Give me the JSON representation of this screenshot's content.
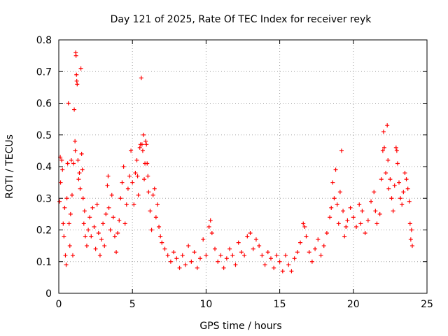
{
  "chart_data": {
    "type": "scatter",
    "title": "Day 121 of 2025, Rate Of TEC Index for receiver reyk",
    "xlabel": "GPS time / hours",
    "ylabel": "ROTI / TECUs",
    "xlim": [
      0,
      25
    ],
    "ylim": [
      0,
      0.8
    ],
    "xticks": [
      0,
      5,
      10,
      15,
      20,
      25
    ],
    "xtick_labels": [
      "0",
      "5",
      "10",
      "15",
      "20",
      "25"
    ],
    "yticks": [
      0,
      0.1,
      0.2,
      0.3,
      0.4,
      0.5,
      0.6,
      0.7,
      0.8
    ],
    "ytick_labels": [
      "0",
      "0.1",
      "0.2",
      "0.3",
      "0.4",
      "0.5",
      "0.6",
      "0.7",
      "0.8"
    ],
    "grid": true,
    "marker": "+",
    "color": "#ff0000",
    "series": [
      {
        "name": "ROTI",
        "points": [
          [
            0.05,
            0.29
          ],
          [
            0.1,
            0.43
          ],
          [
            0.12,
            0.35
          ],
          [
            0.2,
            0.42
          ],
          [
            0.25,
            0.39
          ],
          [
            0.3,
            0.22
          ],
          [
            0.35,
            0.18
          ],
          [
            0.4,
            0.27
          ],
          [
            0.45,
            0.12
          ],
          [
            0.5,
            0.09
          ],
          [
            0.55,
            0.3
          ],
          [
            0.6,
            0.41
          ],
          [
            0.65,
            0.6
          ],
          [
            0.7,
            0.22
          ],
          [
            0.75,
            0.15
          ],
          [
            0.8,
            0.25
          ],
          [
            0.85,
            0.42
          ],
          [
            0.9,
            0.31
          ],
          [
            0.95,
            0.12
          ],
          [
            1.0,
            0.41
          ],
          [
            1.05,
            0.58
          ],
          [
            1.1,
            0.48
          ],
          [
            1.12,
            0.45
          ],
          [
            1.15,
            0.76
          ],
          [
            1.17,
            0.75
          ],
          [
            1.2,
            0.69
          ],
          [
            1.22,
            0.67
          ],
          [
            1.25,
            0.66
          ],
          [
            1.3,
            0.42
          ],
          [
            1.35,
            0.36
          ],
          [
            1.4,
            0.38
          ],
          [
            1.45,
            0.33
          ],
          [
            1.5,
            0.71
          ],
          [
            1.55,
            0.44
          ],
          [
            1.6,
            0.39
          ],
          [
            1.65,
            0.3
          ],
          [
            1.7,
            0.22
          ],
          [
            1.75,
            0.26
          ],
          [
            1.8,
            0.18
          ],
          [
            1.9,
            0.15
          ],
          [
            2.0,
            0.2
          ],
          [
            2.1,
            0.24
          ],
          [
            2.2,
            0.18
          ],
          [
            2.3,
            0.27
          ],
          [
            2.4,
            0.21
          ],
          [
            2.5,
            0.14
          ],
          [
            2.6,
            0.28
          ],
          [
            2.7,
            0.19
          ],
          [
            2.8,
            0.12
          ],
          [
            2.9,
            0.17
          ],
          [
            3.0,
            0.22
          ],
          [
            3.1,
            0.15
          ],
          [
            3.2,
            0.25
          ],
          [
            3.3,
            0.34
          ],
          [
            3.35,
            0.37
          ],
          [
            3.4,
            0.27
          ],
          [
            3.5,
            0.2
          ],
          [
            3.6,
            0.31
          ],
          [
            3.7,
            0.24
          ],
          [
            3.8,
            0.18
          ],
          [
            3.9,
            0.13
          ],
          [
            4.0,
            0.19
          ],
          [
            4.1,
            0.23
          ],
          [
            4.2,
            0.3
          ],
          [
            4.3,
            0.35
          ],
          [
            4.4,
            0.4
          ],
          [
            4.5,
            0.22
          ],
          [
            4.6,
            0.28
          ],
          [
            4.7,
            0.33
          ],
          [
            4.8,
            0.37
          ],
          [
            4.9,
            0.45
          ],
          [
            5.0,
            0.35
          ],
          [
            5.1,
            0.28
          ],
          [
            5.2,
            0.38
          ],
          [
            5.3,
            0.42
          ],
          [
            5.35,
            0.37
          ],
          [
            5.4,
            0.31
          ],
          [
            5.5,
            0.46
          ],
          [
            5.55,
            0.47
          ],
          [
            5.6,
            0.68
          ],
          [
            5.65,
            0.47
          ],
          [
            5.7,
            0.45
          ],
          [
            5.75,
            0.5
          ],
          [
            5.8,
            0.36
          ],
          [
            5.85,
            0.41
          ],
          [
            5.9,
            0.48
          ],
          [
            5.95,
            0.47
          ],
          [
            6.0,
            0.41
          ],
          [
            6.05,
            0.37
          ],
          [
            6.1,
            0.32
          ],
          [
            6.2,
            0.26
          ],
          [
            6.3,
            0.2
          ],
          [
            6.4,
            0.31
          ],
          [
            6.5,
            0.33
          ],
          [
            6.6,
            0.24
          ],
          [
            6.7,
            0.28
          ],
          [
            6.8,
            0.21
          ],
          [
            6.9,
            0.18
          ],
          [
            7.0,
            0.16
          ],
          [
            7.2,
            0.14
          ],
          [
            7.4,
            0.12
          ],
          [
            7.6,
            0.1
          ],
          [
            7.8,
            0.13
          ],
          [
            8.0,
            0.11
          ],
          [
            8.2,
            0.08
          ],
          [
            8.4,
            0.12
          ],
          [
            8.6,
            0.09
          ],
          [
            8.8,
            0.15
          ],
          [
            9.0,
            0.1
          ],
          [
            9.2,
            0.13
          ],
          [
            9.4,
            0.08
          ],
          [
            9.6,
            0.11
          ],
          [
            9.8,
            0.17
          ],
          [
            10.0,
            0.12
          ],
          [
            10.2,
            0.21
          ],
          [
            10.3,
            0.23
          ],
          [
            10.4,
            0.19
          ],
          [
            10.6,
            0.14
          ],
          [
            10.8,
            0.1
          ],
          [
            11.0,
            0.12
          ],
          [
            11.2,
            0.08
          ],
          [
            11.4,
            0.11
          ],
          [
            11.6,
            0.14
          ],
          [
            11.8,
            0.12
          ],
          [
            12.0,
            0.09
          ],
          [
            12.2,
            0.16
          ],
          [
            12.4,
            0.13
          ],
          [
            12.6,
            0.12
          ],
          [
            12.8,
            0.18
          ],
          [
            13.0,
            0.19
          ],
          [
            13.2,
            0.14
          ],
          [
            13.4,
            0.17
          ],
          [
            13.6,
            0.15
          ],
          [
            13.8,
            0.12
          ],
          [
            14.0,
            0.09
          ],
          [
            14.2,
            0.13
          ],
          [
            14.4,
            0.11
          ],
          [
            14.6,
            0.08
          ],
          [
            14.8,
            0.12
          ],
          [
            15.0,
            0.1
          ],
          [
            15.2,
            0.07
          ],
          [
            15.4,
            0.12
          ],
          [
            15.6,
            0.09
          ],
          [
            15.8,
            0.07
          ],
          [
            16.0,
            0.11
          ],
          [
            16.2,
            0.13
          ],
          [
            16.4,
            0.16
          ],
          [
            16.6,
            0.22
          ],
          [
            16.7,
            0.21
          ],
          [
            16.8,
            0.18
          ],
          [
            17.0,
            0.13
          ],
          [
            17.2,
            0.1
          ],
          [
            17.4,
            0.14
          ],
          [
            17.6,
            0.17
          ],
          [
            17.8,
            0.12
          ],
          [
            18.0,
            0.15
          ],
          [
            18.2,
            0.19
          ],
          [
            18.4,
            0.24
          ],
          [
            18.5,
            0.27
          ],
          [
            18.6,
            0.35
          ],
          [
            18.7,
            0.3
          ],
          [
            18.8,
            0.39
          ],
          [
            18.9,
            0.28
          ],
          [
            19.0,
            0.22
          ],
          [
            19.1,
            0.32
          ],
          [
            19.2,
            0.45
          ],
          [
            19.3,
            0.26
          ],
          [
            19.4,
            0.18
          ],
          [
            19.5,
            0.21
          ],
          [
            19.6,
            0.23
          ],
          [
            19.8,
            0.27
          ],
          [
            20.0,
            0.24
          ],
          [
            20.2,
            0.21
          ],
          [
            20.4,
            0.28
          ],
          [
            20.5,
            0.22
          ],
          [
            20.6,
            0.26
          ],
          [
            20.8,
            0.19
          ],
          [
            21.0,
            0.23
          ],
          [
            21.2,
            0.29
          ],
          [
            21.4,
            0.32
          ],
          [
            21.5,
            0.26
          ],
          [
            21.6,
            0.22
          ],
          [
            21.8,
            0.25
          ],
          [
            21.9,
            0.36
          ],
          [
            22.0,
            0.45
          ],
          [
            22.05,
            0.51
          ],
          [
            22.1,
            0.46
          ],
          [
            22.2,
            0.38
          ],
          [
            22.3,
            0.53
          ],
          [
            22.35,
            0.42
          ],
          [
            22.4,
            0.33
          ],
          [
            22.5,
            0.36
          ],
          [
            22.6,
            0.3
          ],
          [
            22.7,
            0.26
          ],
          [
            22.8,
            0.34
          ],
          [
            22.9,
            0.46
          ],
          [
            22.95,
            0.45
          ],
          [
            23.0,
            0.41
          ],
          [
            23.1,
            0.35
          ],
          [
            23.2,
            0.3
          ],
          [
            23.3,
            0.28
          ],
          [
            23.4,
            0.32
          ],
          [
            23.5,
            0.38
          ],
          [
            23.6,
            0.36
          ],
          [
            23.7,
            0.33
          ],
          [
            23.8,
            0.29
          ],
          [
            23.85,
            0.22
          ],
          [
            23.9,
            0.17
          ],
          [
            23.95,
            0.2
          ],
          [
            24.0,
            0.15
          ]
        ]
      }
    ]
  }
}
